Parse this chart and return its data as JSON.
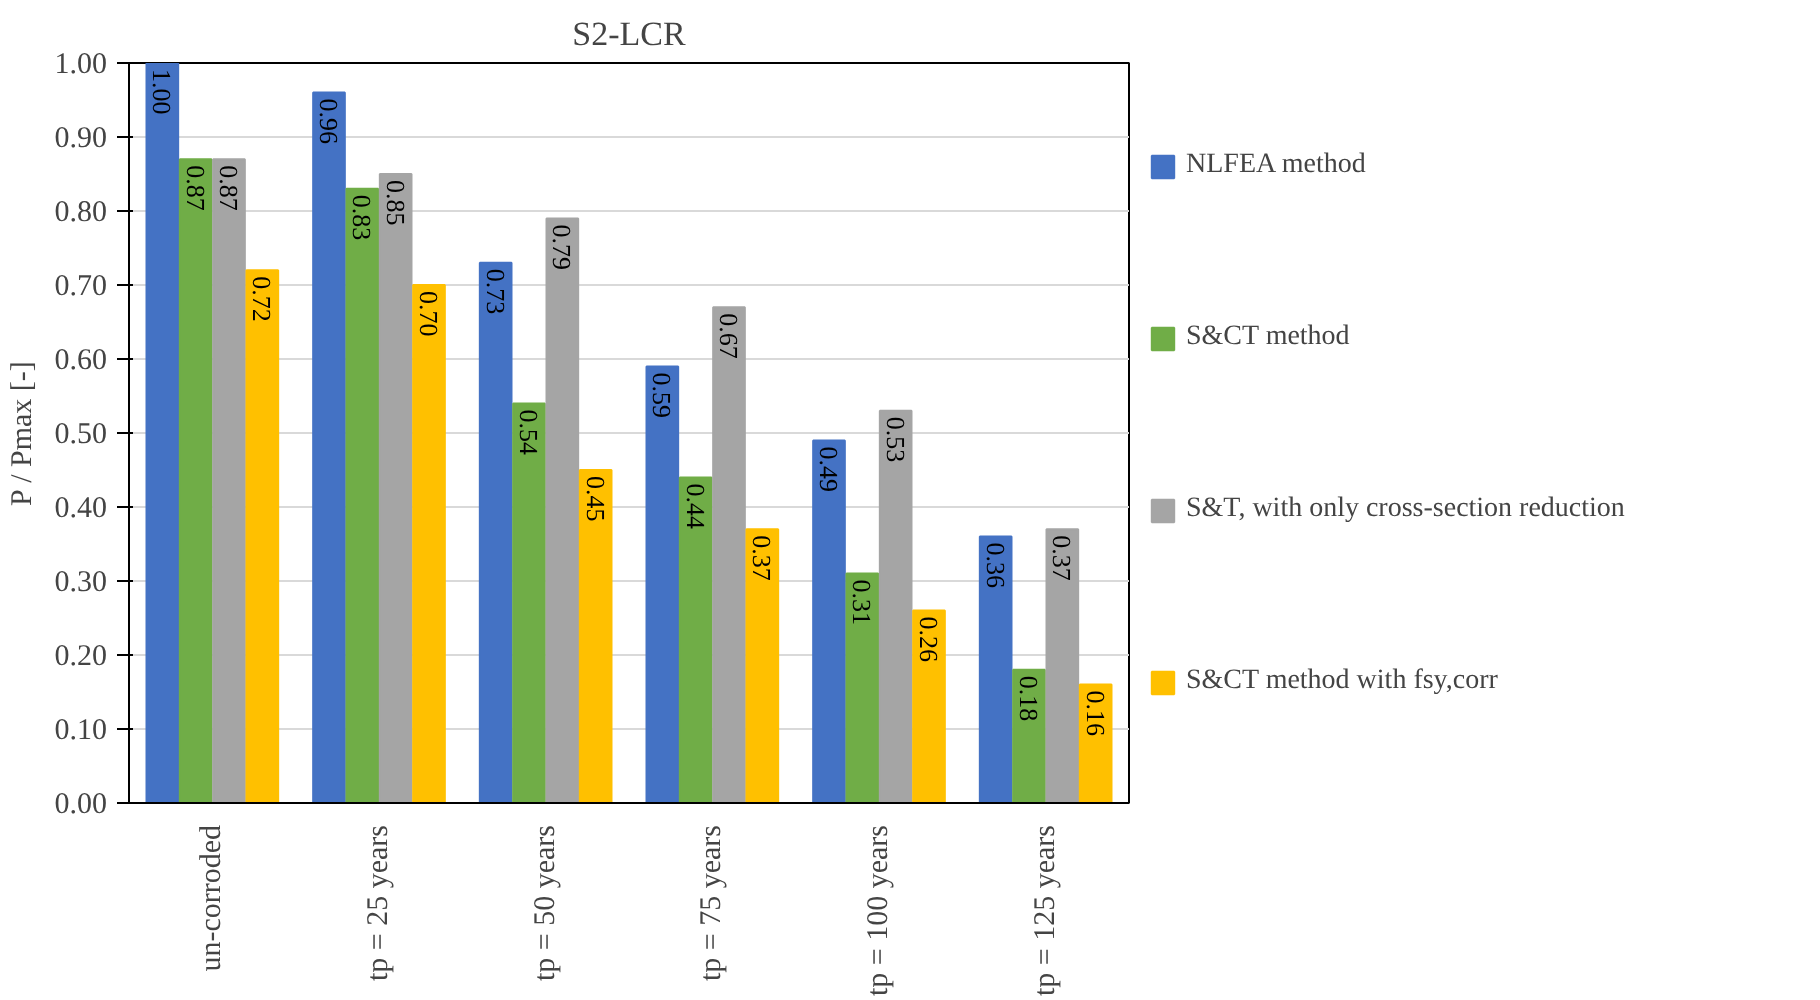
{
  "chart_data": {
    "type": "bar",
    "title": "S2-LCR",
    "ylabel": "P / Pmax [-]",
    "categories": [
      "un-corroded",
      "tp = 25 years",
      "tp = 50 years",
      "tp = 75 years",
      "tp = 100 years",
      "tp = 125 years"
    ],
    "series": [
      {
        "name": "NLFEA method",
        "color": "#4472c4",
        "values": [
          1.0,
          0.96,
          0.73,
          0.59,
          0.49,
          0.36
        ],
        "value_labels": [
          "1.00",
          "0.96",
          "0.73",
          "0.59",
          "0.49",
          "0.36"
        ]
      },
      {
        "name": "S&CT method",
        "color": "#70ad47",
        "values": [
          0.87,
          0.83,
          0.54,
          0.44,
          0.31,
          0.18
        ],
        "value_labels": [
          "0.87",
          "0.83",
          "0.54",
          "0.44",
          "0.31",
          "0.18"
        ]
      },
      {
        "name": "S&T, with only cross-section reduction",
        "color": "#a5a5a5",
        "values": [
          0.87,
          0.85,
          0.79,
          0.67,
          0.53,
          0.37
        ],
        "value_labels": [
          "0.87",
          "0.85",
          "0.79",
          "0.67",
          "0.53",
          "0.37"
        ]
      },
      {
        "name": "S&CT method with fsy,corr",
        "color": "#ffc000",
        "values": [
          0.72,
          0.7,
          0.45,
          0.37,
          0.26,
          0.16
        ],
        "value_labels": [
          "0.72",
          "0.70",
          "0.45",
          "0.37",
          "0.26",
          "0.16"
        ]
      }
    ],
    "ylim": [
      0,
      1
    ],
    "yticks": [
      {
        "value": 0,
        "label": "0.00"
      },
      {
        "value": 0.1,
        "label": "0.10"
      },
      {
        "value": 0.2,
        "label": "0.20"
      },
      {
        "value": 0.3,
        "label": "0.30"
      },
      {
        "value": 0.4,
        "label": "0.40"
      },
      {
        "value": 0.5,
        "label": "0.50"
      },
      {
        "value": 0.6,
        "label": "0.60"
      },
      {
        "value": 0.7,
        "label": "0.70"
      },
      {
        "value": 0.8,
        "label": "0.80"
      },
      {
        "value": 0.9,
        "label": "0.90"
      },
      {
        "value": 1.0,
        "label": "1.00"
      }
    ],
    "grid": "y",
    "legend": "right"
  }
}
